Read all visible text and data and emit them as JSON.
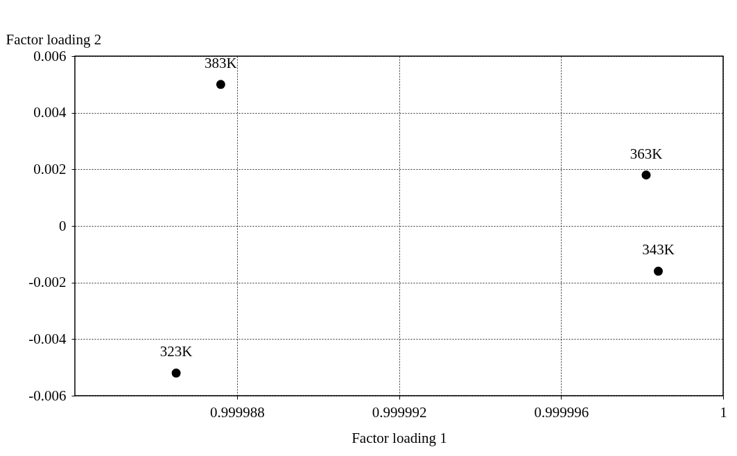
{
  "chart_data": {
    "type": "scatter",
    "xlabel": "Factor loading 1",
    "ylabel": "Factor loading 2",
    "x": [
      0.9999865,
      0.9999876,
      0.9999984,
      0.9999981
    ],
    "series": [
      {
        "color": "#000000",
        "values": [
          -0.0052,
          0.005,
          -0.0016,
          0.0018
        ]
      }
    ],
    "xlim": [
      0.999984,
      1.0
    ],
    "xticks": [
      0.999988,
      0.999992,
      0.999996,
      1
    ],
    "ylim": [
      -0.006,
      0.006
    ],
    "yticks": [
      -0.006,
      -0.004,
      -0.002,
      0,
      0.002,
      0.004,
      0.006
    ],
    "annotations": [
      {
        "text": "323K",
        "x": 0.9999865,
        "y": -0.0052
      },
      {
        "text": "383K",
        "x": 0.9999876,
        "y": 0.005
      },
      {
        "text": "343K",
        "x": 0.9999984,
        "y": -0.0016
      },
      {
        "text": "363K",
        "x": 0.9999981,
        "y": 0.0018
      }
    ],
    "grid": true,
    "marker": "circle",
    "legend": false
  }
}
